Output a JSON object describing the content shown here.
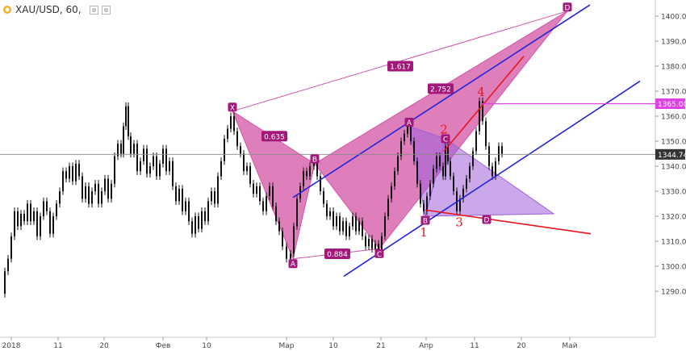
{
  "header": {
    "title": "XAU/USD, 60,",
    "eye_icon": "eye-icon",
    "settings_icon": "settings-icon"
  },
  "chart_data": {
    "type": "line",
    "symbol": "XAU/USD",
    "interval": "60",
    "ylim": [
      1287,
      1405
    ],
    "y_ticks": [
      1290,
      1300,
      1310,
      1320,
      1330,
      1340,
      1350,
      1360,
      1370,
      1380,
      1390,
      1400
    ],
    "y_tick_labels": [
      "1290.00",
      "1300.00",
      "1310.00",
      "1320.00",
      "1330.00",
      "1340.00",
      "1350.00",
      "1360.00",
      "1370.00",
      "1380.00",
      "1390.00",
      "1400.00"
    ],
    "x_ticks": [
      "2018",
      "11",
      "20",
      "Фев",
      "10",
      "Мар",
      "10",
      "21",
      "Апр",
      "11",
      "20",
      "Май"
    ],
    "price_series": [
      {
        "t": 2,
        "v": 1289
      },
      {
        "t": 6,
        "v": 1298
      },
      {
        "t": 10,
        "v": 1303
      },
      {
        "t": 14,
        "v": 1312
      },
      {
        "t": 18,
        "v": 1322
      },
      {
        "t": 22,
        "v": 1316
      },
      {
        "t": 26,
        "v": 1321
      },
      {
        "t": 30,
        "v": 1318
      },
      {
        "t": 34,
        "v": 1325
      },
      {
        "t": 38,
        "v": 1318
      },
      {
        "t": 42,
        "v": 1322
      },
      {
        "t": 46,
        "v": 1312
      },
      {
        "t": 50,
        "v": 1320
      },
      {
        "t": 54,
        "v": 1326
      },
      {
        "t": 58,
        "v": 1322
      },
      {
        "t": 62,
        "v": 1313
      },
      {
        "t": 66,
        "v": 1320
      },
      {
        "t": 70,
        "v": 1325
      },
      {
        "t": 74,
        "v": 1330
      },
      {
        "t": 78,
        "v": 1338
      },
      {
        "t": 82,
        "v": 1335
      },
      {
        "t": 86,
        "v": 1340
      },
      {
        "t": 90,
        "v": 1334
      },
      {
        "t": 94,
        "v": 1341
      },
      {
        "t": 98,
        "v": 1336
      },
      {
        "t": 102,
        "v": 1327
      },
      {
        "t": 106,
        "v": 1332
      },
      {
        "t": 110,
        "v": 1325
      },
      {
        "t": 114,
        "v": 1330
      },
      {
        "t": 118,
        "v": 1333
      },
      {
        "t": 122,
        "v": 1325
      },
      {
        "t": 126,
        "v": 1330
      },
      {
        "t": 130,
        "v": 1335
      },
      {
        "t": 134,
        "v": 1327
      },
      {
        "t": 138,
        "v": 1333
      },
      {
        "t": 142,
        "v": 1344
      },
      {
        "t": 146,
        "v": 1349
      },
      {
        "t": 150,
        "v": 1345
      },
      {
        "t": 153,
        "v": 1356
      },
      {
        "t": 156,
        "v": 1364
      },
      {
        "t": 159,
        "v": 1352
      },
      {
        "t": 162,
        "v": 1345
      },
      {
        "t": 166,
        "v": 1349
      },
      {
        "t": 170,
        "v": 1338
      },
      {
        "t": 174,
        "v": 1342
      },
      {
        "t": 178,
        "v": 1347
      },
      {
        "t": 182,
        "v": 1337
      },
      {
        "t": 186,
        "v": 1340
      },
      {
        "t": 190,
        "v": 1344
      },
      {
        "t": 194,
        "v": 1336
      },
      {
        "t": 198,
        "v": 1341
      },
      {
        "t": 202,
        "v": 1347
      },
      {
        "t": 206,
        "v": 1338
      },
      {
        "t": 210,
        "v": 1342
      },
      {
        "t": 214,
        "v": 1332
      },
      {
        "t": 218,
        "v": 1326
      },
      {
        "t": 222,
        "v": 1331
      },
      {
        "t": 226,
        "v": 1322
      },
      {
        "t": 230,
        "v": 1326
      },
      {
        "t": 234,
        "v": 1318
      },
      {
        "t": 238,
        "v": 1313
      },
      {
        "t": 242,
        "v": 1320
      },
      {
        "t": 246,
        "v": 1315
      },
      {
        "t": 250,
        "v": 1322
      },
      {
        "t": 254,
        "v": 1318
      },
      {
        "t": 258,
        "v": 1326
      },
      {
        "t": 262,
        "v": 1330
      },
      {
        "t": 266,
        "v": 1325
      },
      {
        "t": 270,
        "v": 1336
      },
      {
        "t": 274,
        "v": 1342
      },
      {
        "t": 278,
        "v": 1351
      },
      {
        "t": 282,
        "v": 1355
      },
      {
        "t": 286,
        "v": 1360
      },
      {
        "t": 290,
        "v": 1354
      },
      {
        "t": 294,
        "v": 1348
      },
      {
        "t": 298,
        "v": 1345
      },
      {
        "t": 302,
        "v": 1338
      },
      {
        "t": 306,
        "v": 1340
      },
      {
        "t": 310,
        "v": 1333
      },
      {
        "t": 314,
        "v": 1329
      },
      {
        "t": 318,
        "v": 1332
      },
      {
        "t": 322,
        "v": 1326
      },
      {
        "t": 326,
        "v": 1322
      },
      {
        "t": 330,
        "v": 1328
      },
      {
        "t": 334,
        "v": 1332
      },
      {
        "t": 338,
        "v": 1324
      },
      {
        "t": 342,
        "v": 1318
      },
      {
        "t": 346,
        "v": 1314
      },
      {
        "t": 350,
        "v": 1308
      },
      {
        "t": 355,
        "v": 1303
      },
      {
        "t": 360,
        "v": 1305
      },
      {
        "t": 364,
        "v": 1316
      },
      {
        "t": 368,
        "v": 1327
      },
      {
        "t": 372,
        "v": 1332
      },
      {
        "t": 376,
        "v": 1338
      },
      {
        "t": 380,
        "v": 1336
      },
      {
        "t": 384,
        "v": 1340
      },
      {
        "t": 389,
        "v": 1342
      },
      {
        "t": 393,
        "v": 1336
      },
      {
        "t": 397,
        "v": 1330
      },
      {
        "t": 401,
        "v": 1325
      },
      {
        "t": 405,
        "v": 1320
      },
      {
        "t": 409,
        "v": 1322
      },
      {
        "t": 413,
        "v": 1316
      },
      {
        "t": 417,
        "v": 1320
      },
      {
        "t": 421,
        "v": 1314
      },
      {
        "t": 425,
        "v": 1318
      },
      {
        "t": 429,
        "v": 1312
      },
      {
        "t": 433,
        "v": 1316
      },
      {
        "t": 437,
        "v": 1320
      },
      {
        "t": 441,
        "v": 1314
      },
      {
        "t": 445,
        "v": 1318
      },
      {
        "t": 449,
        "v": 1312
      },
      {
        "t": 453,
        "v": 1308
      },
      {
        "t": 457,
        "v": 1311
      },
      {
        "t": 461,
        "v": 1307
      },
      {
        "t": 465,
        "v": 1309
      },
      {
        "t": 469,
        "v": 1306
      },
      {
        "t": 473,
        "v": 1312
      },
      {
        "t": 477,
        "v": 1320
      },
      {
        "t": 481,
        "v": 1327
      },
      {
        "t": 485,
        "v": 1332
      },
      {
        "t": 489,
        "v": 1338
      },
      {
        "t": 493,
        "v": 1344
      },
      {
        "t": 497,
        "v": 1350
      },
      {
        "t": 501,
        "v": 1353
      },
      {
        "t": 505,
        "v": 1357
      },
      {
        "t": 509,
        "v": 1350
      },
      {
        "t": 513,
        "v": 1342
      },
      {
        "t": 517,
        "v": 1333
      },
      {
        "t": 521,
        "v": 1325
      },
      {
        "t": 525,
        "v": 1322
      },
      {
        "t": 529,
        "v": 1328
      },
      {
        "t": 533,
        "v": 1333
      },
      {
        "t": 537,
        "v": 1339
      },
      {
        "t": 541,
        "v": 1344
      },
      {
        "t": 545,
        "v": 1340
      },
      {
        "t": 549,
        "v": 1336
      },
      {
        "t": 552,
        "v": 1348
      },
      {
        "t": 555,
        "v": 1342
      },
      {
        "t": 558,
        "v": 1336
      },
      {
        "t": 562,
        "v": 1330
      },
      {
        "t": 566,
        "v": 1322
      },
      {
        "t": 570,
        "v": 1327
      },
      {
        "t": 574,
        "v": 1331
      },
      {
        "t": 578,
        "v": 1335
      },
      {
        "t": 582,
        "v": 1340
      },
      {
        "t": 586,
        "v": 1346
      },
      {
        "t": 590,
        "v": 1354
      },
      {
        "t": 594,
        "v": 1366
      },
      {
        "t": 598,
        "v": 1358
      },
      {
        "t": 602,
        "v": 1348
      },
      {
        "t": 606,
        "v": 1340
      },
      {
        "t": 610,
        "v": 1336
      },
      {
        "t": 614,
        "v": 1342
      },
      {
        "t": 618,
        "v": 1348
      },
      {
        "t": 622,
        "v": 1345
      }
    ],
    "current_price": "1344.74",
    "level_1365": "1365.00",
    "patterns": [
      {
        "name": "XABCD",
        "points": [
          {
            "label": "X",
            "t": 288,
            "v": 1362
          },
          {
            "label": "A",
            "t": 363,
            "v": 1303
          },
          {
            "label": "B",
            "t": 390,
            "v": 1341
          },
          {
            "label": "C",
            "t": 470,
            "v": 1307
          },
          {
            "label": "D",
            "t": 703,
            "v": 1402
          }
        ],
        "ratios": [
          {
            "text": "0.635",
            "t": 340,
            "v": 1352
          },
          {
            "text": "0.884",
            "t": 418,
            "v": 1305
          },
          {
            "text": "1.617",
            "t": 496,
            "v": 1380
          },
          {
            "text": "2.752",
            "t": 546,
            "v": 1371
          }
        ]
      },
      {
        "name": "ABCD",
        "points": [
          {
            "label": "A",
            "t": 507,
            "v": 1356
          },
          {
            "label": "B",
            "t": 527,
            "v": 1320
          },
          {
            "label": "C",
            "t": 552,
            "v": 1351
          },
          {
            "label": "D",
            "t": 603,
            "v": 1320
          }
        ]
      }
    ],
    "annotations": [
      {
        "text": "1",
        "t": 525,
        "v": 1312
      },
      {
        "text": "2",
        "t": 550,
        "v": 1353
      },
      {
        "text": "3",
        "t": 569,
        "v": 1316
      },
      {
        "text": "4",
        "t": 596,
        "v": 1368
      }
    ],
    "colors": {
      "candles": "#111111",
      "pattern_fill": "#d354a6",
      "pattern_fill2": "#9e60d9",
      "label_bg": "#a3187a",
      "channel": "#2323d8",
      "trend_red": "#e8151b",
      "level_line": "#e040e8",
      "price_tag": "#333333",
      "level_tag": "#e040e8"
    }
  }
}
